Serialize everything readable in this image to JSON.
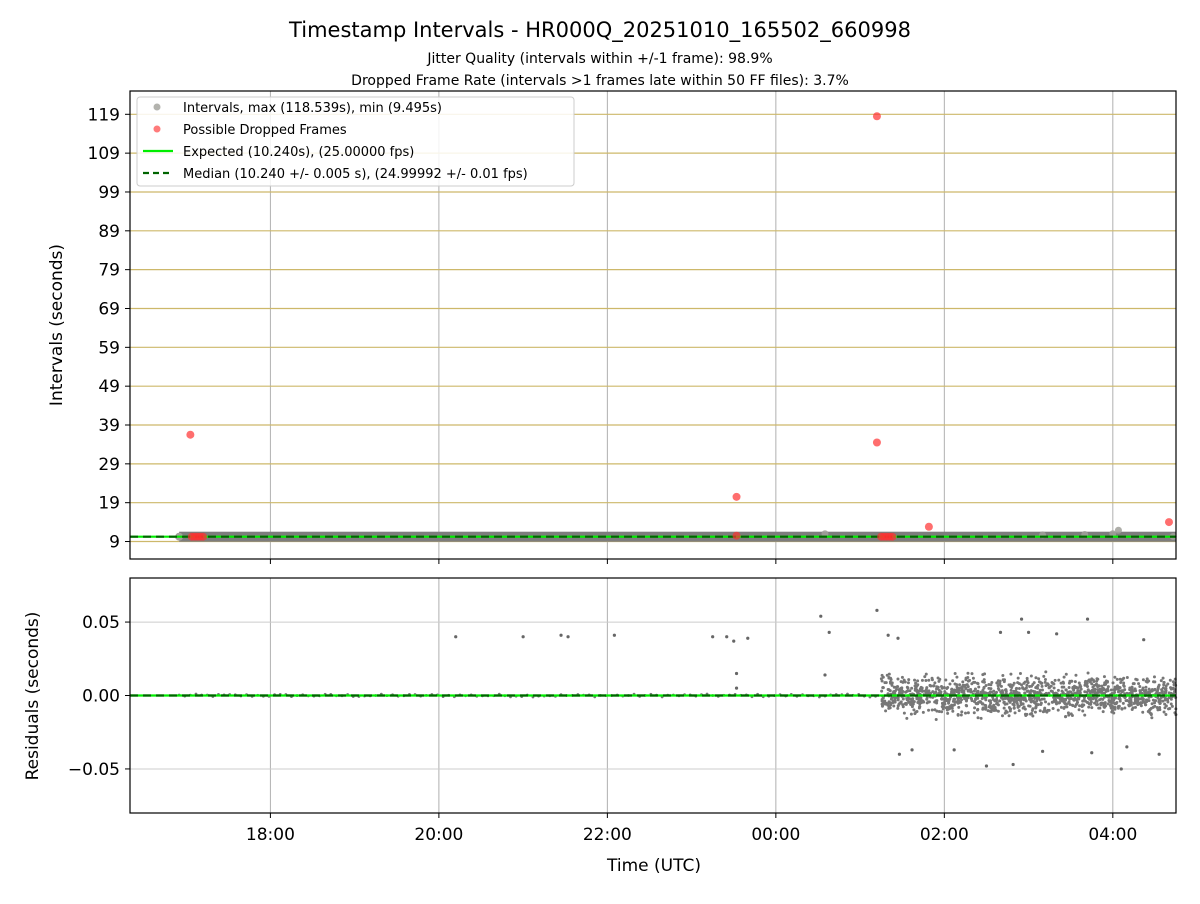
{
  "figure": {
    "title": "Timestamp Intervals - HR000Q_20251010_165502_660998",
    "subtitle_line1": "Jitter Quality (intervals within +/-1 frame): 98.9%",
    "subtitle_line2": "Dropped Frame Rate (intervals >1 frames late within 50 FF files): 3.7%"
  },
  "chart_data": [
    {
      "type": "scatter",
      "panel": "intervals",
      "ylabel": "Intervals (seconds)",
      "ylim": [
        4.5,
        125
      ],
      "xlim": [
        "16:20",
        "04:45"
      ],
      "grid": "both",
      "yticks": [
        9,
        19,
        29,
        39,
        49,
        59,
        69,
        79,
        89,
        99,
        109,
        119
      ],
      "legend_position": "top-left",
      "legend": [
        {
          "label": "Intervals, max (118.539s), min (9.495s)",
          "marker": "circle",
          "color": "#a0a09a"
        },
        {
          "label": "Possible Dropped Frames",
          "marker": "circle",
          "color": "#ff5a5a"
        },
        {
          "label": "Expected (10.240s), (25.00000 fps)",
          "marker": "solid-line",
          "color": "#00ee00"
        },
        {
          "label": "Median (10.240 +/- 0.005 s), (24.99992 +/- 0.01 fps)",
          "marker": "dashed-line",
          "color": "#006400"
        }
      ],
      "expected_interval": 10.24,
      "median_interval": 10.24,
      "intervals_band": {
        "from": "16:55",
        "to": "04:45",
        "value": 10.24
      },
      "interval_outliers": [
        {
          "x": "00:35",
          "y": 11.0
        },
        {
          "x": "03:10",
          "y": 10.7
        },
        {
          "x": "03:40",
          "y": 10.8
        },
        {
          "x": "04:00",
          "y": 11.0
        },
        {
          "x": "04:04",
          "y": 11.9
        },
        {
          "x": "04:43",
          "y": 10.3
        }
      ],
      "dropped_frames": [
        {
          "x": "17:03",
          "y": 36.5
        },
        {
          "x": "17:04",
          "y": 10.24
        },
        {
          "x": "17:06",
          "y": 10.24
        },
        {
          "x": "17:08",
          "y": 10.24
        },
        {
          "x": "17:10",
          "y": 10.24
        },
        {
          "x": "17:12",
          "y": 10.24
        },
        {
          "x": "23:32",
          "y": 20.5
        },
        {
          "x": "23:32",
          "y": 10.5
        },
        {
          "x": "01:12",
          "y": 118.5
        },
        {
          "x": "01:12",
          "y": 34.5
        },
        {
          "x": "01:15",
          "y": 10.24
        },
        {
          "x": "01:17",
          "y": 10.24
        },
        {
          "x": "01:19",
          "y": 10.24
        },
        {
          "x": "01:21",
          "y": 10.24
        },
        {
          "x": "01:23",
          "y": 10.24
        },
        {
          "x": "01:49",
          "y": 12.8
        },
        {
          "x": "04:40",
          "y": 14.0
        }
      ]
    },
    {
      "type": "scatter",
      "panel": "residuals",
      "xlabel": "Time (UTC)",
      "ylabel": "Residuals (seconds)",
      "ylim": [
        -0.08,
        0.08
      ],
      "xlim": [
        "16:20",
        "04:45"
      ],
      "grid": "both",
      "yticks": [
        -0.05,
        0.0,
        0.05
      ],
      "ytick_labels": [
        "−0.05",
        "0.00",
        "0.05"
      ],
      "xticks": [
        "18:00",
        "20:00",
        "22:00",
        "00:00",
        "02:00",
        "04:00"
      ],
      "residual_outliers": [
        {
          "x": "20:12",
          "y": 0.04
        },
        {
          "x": "21:00",
          "y": 0.04
        },
        {
          "x": "21:27",
          "y": 0.041
        },
        {
          "x": "21:32",
          "y": 0.04
        },
        {
          "x": "22:05",
          "y": 0.041
        },
        {
          "x": "23:15",
          "y": 0.04
        },
        {
          "x": "23:25",
          "y": 0.04
        },
        {
          "x": "23:30",
          "y": 0.037
        },
        {
          "x": "23:32",
          "y": 0.015
        },
        {
          "x": "23:32",
          "y": 0.005
        },
        {
          "x": "23:40",
          "y": 0.039
        },
        {
          "x": "00:32",
          "y": 0.054
        },
        {
          "x": "00:38",
          "y": 0.043
        },
        {
          "x": "00:35",
          "y": 0.014
        },
        {
          "x": "01:12",
          "y": 0.058
        },
        {
          "x": "01:20",
          "y": 0.041
        },
        {
          "x": "01:27",
          "y": 0.039
        },
        {
          "x": "02:40",
          "y": 0.043
        },
        {
          "x": "02:55",
          "y": 0.052
        },
        {
          "x": "03:00",
          "y": 0.043
        },
        {
          "x": "03:20",
          "y": 0.042
        },
        {
          "x": "03:42",
          "y": 0.052
        },
        {
          "x": "04:22",
          "y": 0.038
        },
        {
          "x": "01:28",
          "y": -0.04
        },
        {
          "x": "01:37",
          "y": -0.037
        },
        {
          "x": "02:07",
          "y": -0.037
        },
        {
          "x": "02:30",
          "y": -0.048
        },
        {
          "x": "02:49",
          "y": -0.047
        },
        {
          "x": "03:10",
          "y": -0.038
        },
        {
          "x": "03:45",
          "y": -0.039
        },
        {
          "x": "04:06",
          "y": -0.05
        },
        {
          "x": "04:10",
          "y": -0.035
        },
        {
          "x": "04:33",
          "y": -0.04
        }
      ],
      "noisy_region": {
        "from": "01:15",
        "to": "04:45",
        "spread": 0.018
      },
      "baseline": 0.0
    }
  ]
}
